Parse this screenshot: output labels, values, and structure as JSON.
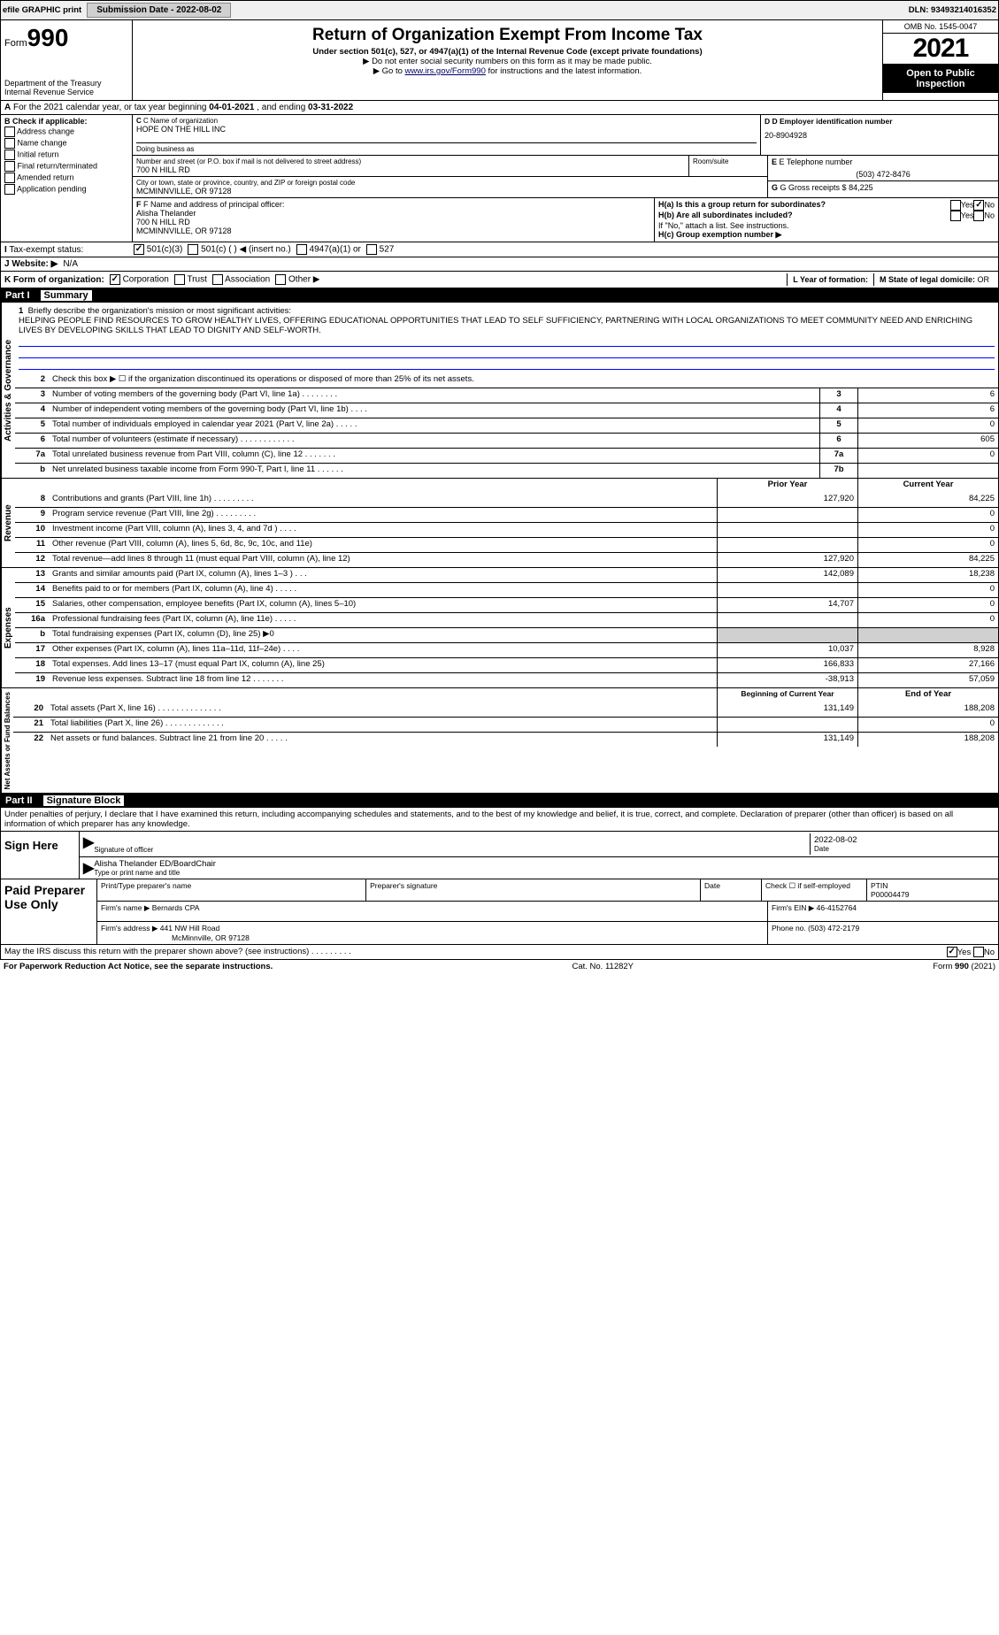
{
  "topbar": {
    "efile": "efile GRAPHIC print",
    "submission_label": "Submission Date - ",
    "submission_date": "2022-08-02",
    "dln_label": "DLN: ",
    "dln": "93493214016352"
  },
  "header": {
    "form_label": "Form",
    "form_number": "990",
    "dept": "Department of the Treasury",
    "irs": "Internal Revenue Service",
    "title": "Return of Organization Exempt From Income Tax",
    "subtitle": "Under section 501(c), 527, or 4947(a)(1) of the Internal Revenue Code (except private foundations)",
    "note1": "Do not enter social security numbers on this form as it may be made public.",
    "note2_pre": "Go to ",
    "note2_link": "www.irs.gov/Form990",
    "note2_post": " for instructions and the latest information.",
    "omb": "OMB No. 1545-0047",
    "year": "2021",
    "open": "Open to Public Inspection"
  },
  "rowA": {
    "text_pre": "For the 2021 calendar year, or tax year beginning ",
    "begin": "04-01-2021",
    "mid": " , and ending ",
    "end": "03-31-2022"
  },
  "colB": {
    "label": "B Check if applicable:",
    "items": [
      "Address change",
      "Name change",
      "Initial return",
      "Final return/terminated",
      "Amended return",
      "Application pending"
    ]
  },
  "colC": {
    "name_label": "C Name of organization",
    "name": "HOPE ON THE HILL INC",
    "dba_label": "Doing business as",
    "dba": "",
    "street_label": "Number and street (or P.O. box if mail is not delivered to street address)",
    "street": "700 N HILL RD",
    "room_label": "Room/suite",
    "city_label": "City or town, state or province, country, and ZIP or foreign postal code",
    "city": "MCMINNVILLE, OR  97128"
  },
  "colD": {
    "label": "D Employer identification number",
    "value": "20-8904928"
  },
  "colE": {
    "tel_label": "E Telephone number",
    "tel": "(503) 472-8476",
    "gross_label": "G Gross receipts $ ",
    "gross": "84,225"
  },
  "colF": {
    "label": "F Name and address of principal officer:",
    "name": "Alisha Thelander",
    "street": "700 N HILL RD",
    "city": "MCMINNVILLE, OR  97128"
  },
  "colH": {
    "ha_label": "H(a)  Is this a group return for subordinates?",
    "ha_no": true,
    "hb_label": "H(b)  Are all subordinates included?",
    "hb_note": "If \"No,\" attach a list. See instructions.",
    "hc_label": "H(c)  Group exemption number ▶"
  },
  "taxexempt": {
    "label": "Tax-exempt status:",
    "opt1": "501(c)(3)",
    "opt2": "501(c) (   ) ◀ (insert no.)",
    "opt3": "4947(a)(1) or",
    "opt4": "527"
  },
  "website": {
    "label": "J Website: ▶",
    "value": "N/A"
  },
  "rowK": {
    "label": "K Form of organization:",
    "opts": [
      "Corporation",
      "Trust",
      "Association",
      "Other ▶"
    ],
    "L_label": "L Year of formation:",
    "L_val": "",
    "M_label": "M State of legal domicile: ",
    "M_val": "OR"
  },
  "partI": {
    "num": "Part I",
    "title": "Summary"
  },
  "mission": {
    "num": "1",
    "label": "Briefly describe the organization's mission or most significant activities:",
    "text": "HELPING PEOPLE FIND RESOURCES TO GROW HEALTHY LIVES, OFFERING EDUCATIONAL OPPORTUNITIES THAT LEAD TO SELF SUFFICIENCY, PARTNERING WITH LOCAL ORGANIZATIONS TO MEET COMMUNITY NEED AND ENRICHING LIVES BY DEVELOPING SKILLS THAT LEAD TO DIGNITY AND SELF-WORTH."
  },
  "gov_rows": [
    {
      "num": "2",
      "desc": "Check this box ▶ ☐ if the organization discontinued its operations or disposed of more than 25% of its net assets.",
      "box": "",
      "val": ""
    },
    {
      "num": "3",
      "desc": "Number of voting members of the governing body (Part VI, line 1a)   .    .    .    .    .    .    .    .",
      "box": "3",
      "val": "6"
    },
    {
      "num": "4",
      "desc": "Number of independent voting members of the governing body (Part VI, line 1b)   .    .    .    .",
      "box": "4",
      "val": "6"
    },
    {
      "num": "5",
      "desc": "Total number of individuals employed in calendar year 2021 (Part V, line 2a)   .    .    .    .    .",
      "box": "5",
      "val": "0"
    },
    {
      "num": "6",
      "desc": "Total number of volunteers (estimate if necessary)    .    .    .    .    .    .    .    .    .    .    .    .",
      "box": "6",
      "val": "605"
    },
    {
      "num": "7a",
      "desc": "Total unrelated business revenue from Part VIII, column (C), line 12    .    .    .    .    .    .    .",
      "box": "7a",
      "val": "0"
    },
    {
      "num": "b",
      "desc": "Net unrelated business taxable income from Form 990-T, Part I, line 11    .    .    .    .    .    .",
      "box": "7b",
      "val": ""
    }
  ],
  "rev_header": {
    "prior": "Prior Year",
    "current": "Current Year"
  },
  "rev_rows": [
    {
      "num": "8",
      "desc": "Contributions and grants (Part VIII, line 1h)    .    .    .    .    .    .    .    .    .",
      "prior": "127,920",
      "cur": "84,225"
    },
    {
      "num": "9",
      "desc": "Program service revenue (Part VIII, line 2g)    .    .    .    .    .    .    .    .    .",
      "prior": "",
      "cur": "0"
    },
    {
      "num": "10",
      "desc": "Investment income (Part VIII, column (A), lines 3, 4, and 7d )    .    .    .    .",
      "prior": "",
      "cur": "0"
    },
    {
      "num": "11",
      "desc": "Other revenue (Part VIII, column (A), lines 5, 6d, 8c, 9c, 10c, and 11e)",
      "prior": "",
      "cur": "0"
    },
    {
      "num": "12",
      "desc": "Total revenue—add lines 8 through 11 (must equal Part VIII, column (A), line 12)",
      "prior": "127,920",
      "cur": "84,225"
    }
  ],
  "exp_rows": [
    {
      "num": "13",
      "desc": "Grants and similar amounts paid (Part IX, column (A), lines 1–3 )   .    .    .",
      "prior": "142,089",
      "cur": "18,238"
    },
    {
      "num": "14",
      "desc": "Benefits paid to or for members (Part IX, column (A), line 4)   .    .    .    .    .",
      "prior": "",
      "cur": "0"
    },
    {
      "num": "15",
      "desc": "Salaries, other compensation, employee benefits (Part IX, column (A), lines 5–10)",
      "prior": "14,707",
      "cur": "0"
    },
    {
      "num": "16a",
      "desc": "Professional fundraising fees (Part IX, column (A), line 11e)    .    .    .    .    .",
      "prior": "",
      "cur": "0"
    },
    {
      "num": "b",
      "desc": "Total fundraising expenses (Part IX, column (D), line 25) ▶0",
      "prior": "shaded",
      "cur": "shaded"
    },
    {
      "num": "17",
      "desc": "Other expenses (Part IX, column (A), lines 11a–11d, 11f–24e)    .    .    .    .",
      "prior": "10,037",
      "cur": "8,928"
    },
    {
      "num": "18",
      "desc": "Total expenses. Add lines 13–17 (must equal Part IX, column (A), line 25)",
      "prior": "166,833",
      "cur": "27,166"
    },
    {
      "num": "19",
      "desc": "Revenue less expenses. Subtract line 18 from line 12   .    .    .    .    .    .    .",
      "prior": "-38,913",
      "cur": "57,059"
    }
  ],
  "net_header": {
    "prior": "Beginning of Current Year",
    "current": "End of Year"
  },
  "net_rows": [
    {
      "num": "20",
      "desc": "Total assets (Part X, line 16)   .    .    .    .    .    .    .    .    .    .    .    .    .    .",
      "prior": "131,149",
      "cur": "188,208"
    },
    {
      "num": "21",
      "desc": "Total liabilities (Part X, line 26)   .    .    .    .    .    .    .    .    .    .    .    .    .",
      "prior": "",
      "cur": "0"
    },
    {
      "num": "22",
      "desc": "Net assets or fund balances. Subtract line 21 from line 20    .    .    .    .    .",
      "prior": "131,149",
      "cur": "188,208"
    }
  ],
  "vlabels": {
    "gov": "Activities & Governance",
    "rev": "Revenue",
    "exp": "Expenses",
    "net": "Net Assets or Fund Balances"
  },
  "partII": {
    "num": "Part II",
    "title": "Signature Block"
  },
  "sig": {
    "declare": "Under penalties of perjury, I declare that I have examined this return, including accompanying schedules and statements, and to the best of my knowledge and belief, it is true, correct, and complete. Declaration of preparer (other than officer) is based on all information of which preparer has any knowledge.",
    "sign_here": "Sign Here",
    "date": "2022-08-02",
    "sig_label": "Signature of officer",
    "date_label": "Date",
    "name": "Alisha Thelander  ED/BoardChair",
    "name_label": "Type or print name and title"
  },
  "paid": {
    "label": "Paid Preparer Use Only",
    "h1": "Print/Type preparer's name",
    "h2": "Preparer's signature",
    "h3": "Date",
    "h4": "Check ☐ if self-employed",
    "h5_label": "PTIN",
    "h5": "P00004479",
    "firm_label": "Firm's name   ▶ ",
    "firm": "Bernards CPA",
    "ein_label": "Firm's EIN ▶ ",
    "ein": "46-4152764",
    "addr_label": "Firm's address ▶ ",
    "addr1": "441 NW Hill Road",
    "addr2": "McMinnville, OR  97128",
    "phone_label": "Phone no. ",
    "phone": "(503) 472-2179"
  },
  "discuss": {
    "text": "May the IRS discuss this return with the preparer shown above? (see instructions)    .    .    .    .    .    .    .    .    .",
    "yes": true
  },
  "footer": {
    "left": "For Paperwork Reduction Act Notice, see the separate instructions.",
    "mid": "Cat. No. 11282Y",
    "right_pre": "Form ",
    "right_form": "990",
    "right_post": " (2021)"
  }
}
